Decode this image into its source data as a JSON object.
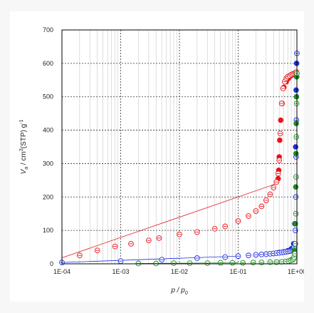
{
  "chart_data": {
    "type": "scatter",
    "x_scale": "log",
    "xlim": [
      0.0001,
      1
    ],
    "ylim": [
      0,
      700
    ],
    "x_ticks": [
      "1E-04",
      "1E-03",
      "1E-02",
      "1E-01",
      "1E+00"
    ],
    "y_ticks": [
      0,
      100,
      200,
      300,
      400,
      500,
      600,
      700
    ],
    "grid": true,
    "xlabel": {
      "main": "p / p",
      "sub": "0"
    },
    "ylabel": {
      "v": "V",
      "vsub": "a",
      "unit1": " / cm",
      "sup3": "3",
      "unit2": "(STP) g",
      "supm1": "-1"
    },
    "series": [
      {
        "color": "#e8141a",
        "adsorption_x": [
          0.0002,
          0.0004,
          0.0008,
          0.0015,
          0.003,
          0.0045,
          0.01,
          0.02,
          0.04,
          0.06,
          0.1,
          0.15,
          0.2,
          0.25,
          0.3,
          0.35,
          0.4,
          0.45,
          0.48,
          0.5,
          0.52,
          0.55,
          0.58,
          0.62,
          0.66,
          0.7,
          0.75,
          0.8,
          0.85,
          0.9,
          0.95,
          0.98
        ],
        "adsorption_y": [
          25,
          40,
          52,
          60,
          70,
          77,
          88,
          95,
          105,
          112,
          128,
          143,
          158,
          172,
          190,
          208,
          228,
          245,
          270,
          310,
          390,
          480,
          525,
          545,
          555,
          560,
          563,
          566,
          568,
          570,
          572,
          574
        ],
        "desorption_x": [
          0.97,
          0.92,
          0.85,
          0.78,
          0.72,
          0.66,
          0.6,
          0.56,
          0.53,
          0.51,
          0.5,
          0.49,
          0.48
        ],
        "desorption_y": [
          573,
          570,
          566,
          562,
          555,
          545,
          528,
          480,
          430,
          370,
          320,
          280,
          255
        ],
        "fit_x": [
          0.0001,
          0.45
        ],
        "fit_y": [
          18,
          240
        ]
      },
      {
        "color": "#1f2ee0",
        "adsorption_x": [
          0.0001,
          0.001,
          0.005,
          0.02,
          0.06,
          0.1,
          0.15,
          0.2,
          0.25,
          0.3,
          0.35,
          0.4,
          0.45,
          0.5,
          0.55,
          0.6,
          0.65,
          0.7,
          0.75,
          0.8,
          0.85,
          0.88,
          0.9,
          0.92,
          0.94,
          0.96,
          0.97,
          0.98,
          0.99,
          1.0
        ],
        "adsorption_y": [
          4,
          8,
          12,
          17,
          20,
          23,
          25,
          27,
          28,
          29,
          30,
          31,
          32,
          33,
          34,
          35,
          36,
          37,
          38,
          39,
          41,
          45,
          50,
          60,
          100,
          200,
          320,
          430,
          560,
          630
        ],
        "desorption_x": [
          0.99,
          0.97,
          0.95,
          0.92,
          0.88,
          0.8,
          0.7,
          0.6,
          0.5
        ],
        "desorption_y": [
          600,
          520,
          350,
          120,
          60,
          45,
          39,
          36,
          34
        ],
        "fit_x": [
          0.0001,
          0.1
        ],
        "fit_y": [
          4,
          23
        ]
      },
      {
        "color": "#1a8a1e",
        "adsorption_x": [
          0.002,
          0.004,
          0.008,
          0.015,
          0.03,
          0.05,
          0.08,
          0.12,
          0.18,
          0.25,
          0.35,
          0.45,
          0.55,
          0.65,
          0.72,
          0.78,
          0.84,
          0.88,
          0.9,
          0.92,
          0.94,
          0.96,
          0.97,
          0.98,
          0.99,
          1.0
        ],
        "adsorption_y": [
          1,
          1,
          2,
          2,
          2,
          3,
          3,
          3,
          4,
          4,
          5,
          5,
          6,
          7,
          8,
          10,
          12,
          15,
          20,
          30,
          60,
          150,
          260,
          380,
          480,
          570
        ],
        "desorption_x": [
          0.995,
          0.985,
          0.975,
          0.965,
          0.955,
          0.94,
          0.9,
          0.8
        ],
        "desorption_y": [
          560,
          500,
          420,
          330,
          230,
          120,
          40,
          12
        ],
        "fit_x": [
          0.002,
          0.1
        ],
        "fit_y": [
          1,
          3
        ]
      }
    ]
  }
}
